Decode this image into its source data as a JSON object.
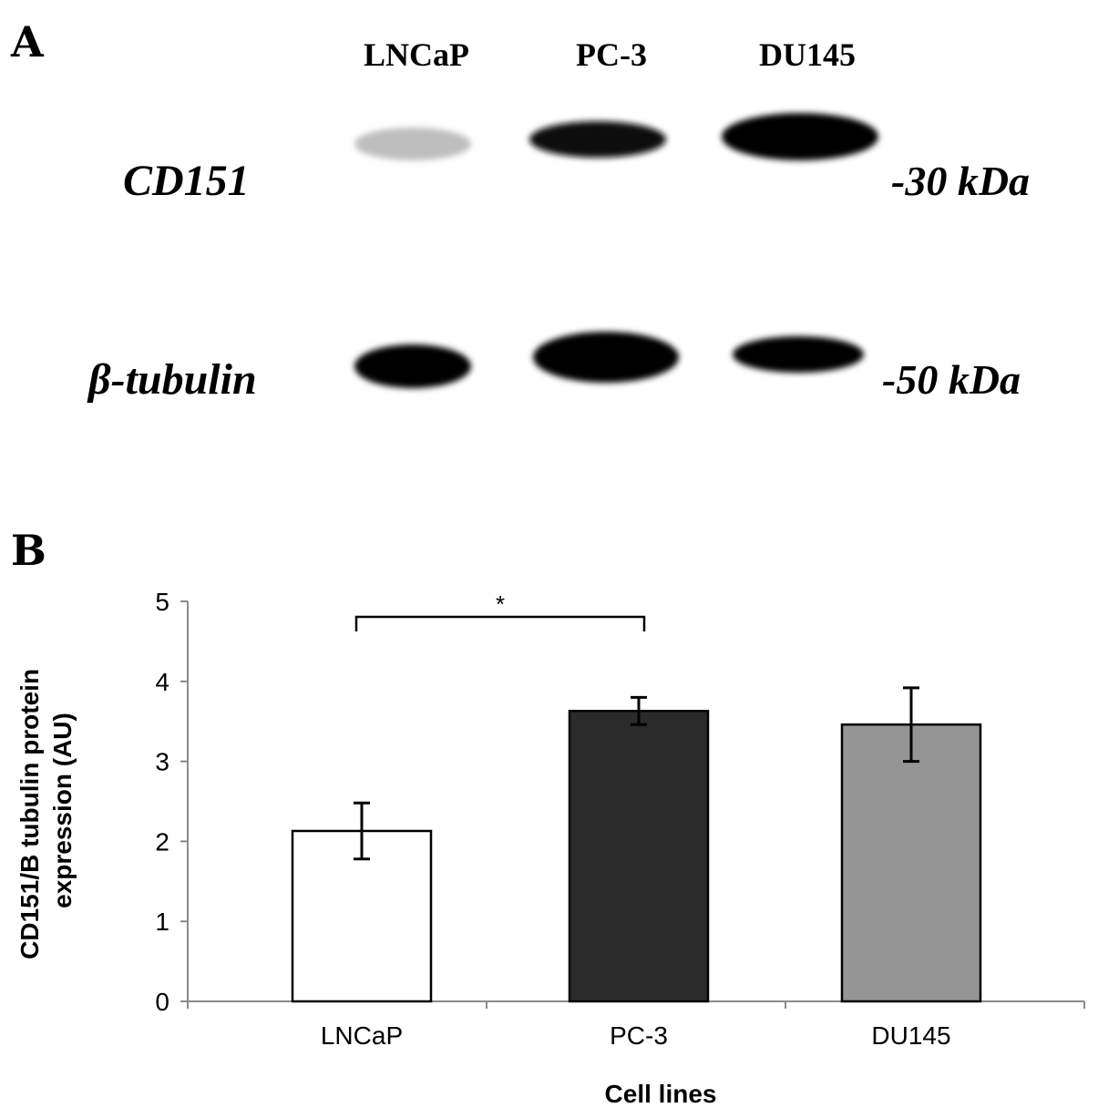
{
  "panel_a": {
    "letter": "A",
    "lanes": [
      "LNCaP",
      "PC-3",
      "DU145"
    ],
    "rows": [
      {
        "protein": "CD151",
        "marker": "-30 kDa",
        "intensities": [
          0.18,
          0.95,
          1.0
        ]
      },
      {
        "protein": "β-tubulin",
        "marker": "-50 kDa",
        "intensities": [
          1.0,
          1.0,
          1.0
        ]
      }
    ]
  },
  "panel_b": {
    "letter": "B",
    "significance": {
      "from": "LNCaP",
      "to": "PC-3",
      "label": "*"
    }
  },
  "chart_data": {
    "type": "bar",
    "categories": [
      "LNCaP",
      "PC-3",
      "DU145"
    ],
    "values": [
      2.13,
      3.63,
      3.46
    ],
    "errors": [
      0.35,
      0.17,
      0.46
    ],
    "colors": [
      "#ffffff",
      "#2a2a2a",
      "#959595"
    ],
    "title": "",
    "xlabel": "Cell lines",
    "ylabel_lines": [
      "CD151/B tubulin protein",
      "expression (AU)"
    ],
    "ylim": [
      0,
      5
    ],
    "yticks": [
      "0",
      "1",
      "2",
      "3",
      "4",
      "5"
    ],
    "grid": false,
    "legend": "none"
  }
}
